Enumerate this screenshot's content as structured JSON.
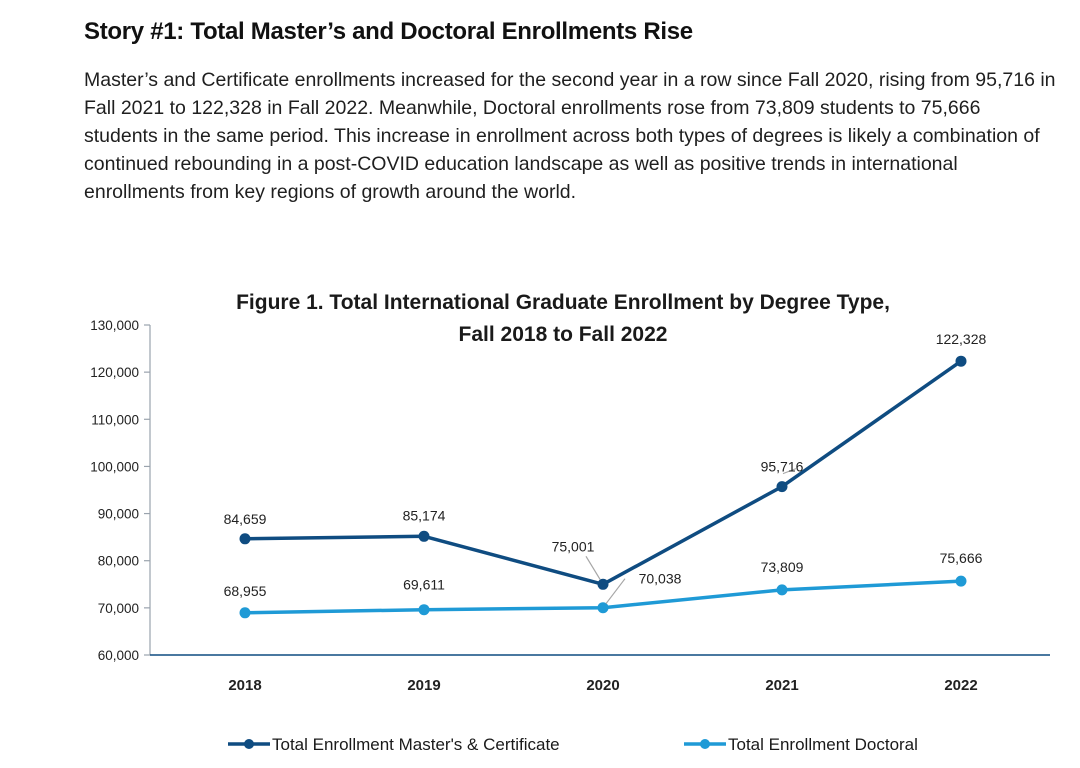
{
  "heading": "Story #1: Total Master’s and Doctoral Enrollments Rise",
  "paragraph": "Master’s and Certificate enrollments increased for the second year in a row since Fall 2020, rising from 95,716 in Fall 2021 to 122,328 in Fall 2022. Meanwhile, Doctoral enrollments rose from 73,809 students to 75,666 students in the same period. This increase in enrollment across both types of degrees is likely a combination of continued rebounding in a post-COVID education landscape as well as positive trends in international enrollments from key regions of growth around the world.",
  "chart_data": {
    "type": "line",
    "title": [
      "Figure 1. Total International Graduate Enrollment by Degree Type,",
      "Fall 2018 to Fall 2022"
    ],
    "categories": [
      "2018",
      "2019",
      "2020",
      "2021",
      "2022"
    ],
    "ylim": [
      60000,
      130000
    ],
    "yticks": [
      60000,
      70000,
      80000,
      90000,
      100000,
      110000,
      120000,
      130000
    ],
    "ytick_labels": [
      "60,000",
      "70,000",
      "80,000",
      "90,000",
      "100,000",
      "110,000",
      "120,000",
      "130,000"
    ],
    "grid": false,
    "legend_position": "bottom",
    "series": [
      {
        "name": "Total Enrollment Master's & Certificate",
        "color": "#0f4c81",
        "values": [
          84659,
          85174,
          75001,
          95716,
          122328
        ],
        "labels": [
          "84,659",
          "85,174",
          "75,001",
          "95,716",
          "122,328"
        ]
      },
      {
        "name": "Total Enrollment Doctoral",
        "color": "#1f9ad6",
        "values": [
          68955,
          69611,
          70038,
          73809,
          75666
        ],
        "labels": [
          "68,955",
          "69,611",
          "70,038",
          "73,809",
          "75,666"
        ]
      }
    ]
  }
}
